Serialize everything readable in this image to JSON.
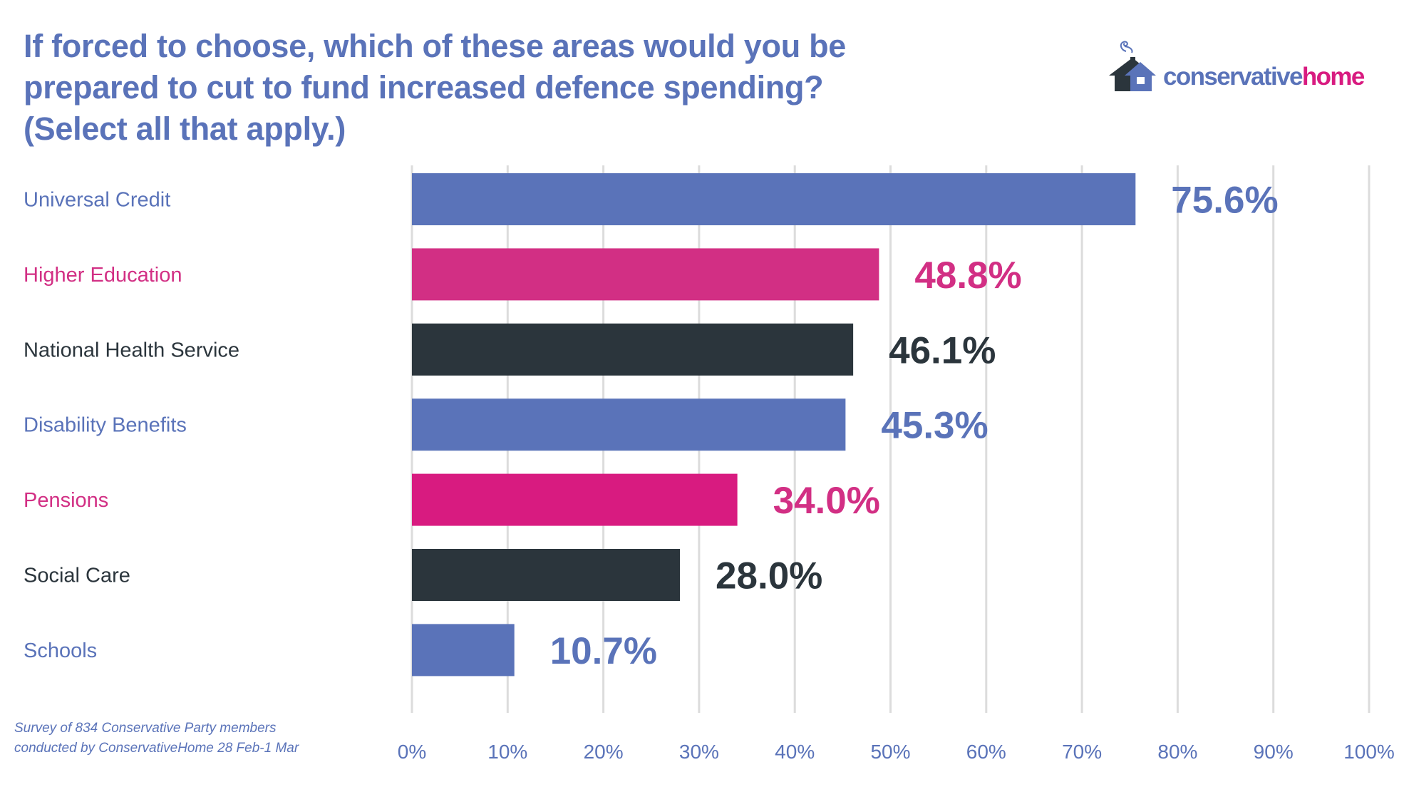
{
  "title_lines": [
    "If forced to choose, which of these areas would you be",
    "prepared to cut to fund increased defence spending?",
    "(Select all that apply.)"
  ],
  "logo": {
    "text_part1": "conservative",
    "text_part2": "home",
    "icon": "house-with-chimney-smoke-icon"
  },
  "footnote_lines": [
    "Survey of 834 Conservative Party members",
    "conducted by ConservativeHome 28 Feb-1 Mar"
  ],
  "colors": {
    "blue": "#5A73B9",
    "pink": "#D22F84",
    "magenta": "#D81B80",
    "dark": "#2B353C",
    "grid": "#DCDCDC"
  },
  "chart_data": {
    "type": "bar",
    "orientation": "horizontal",
    "title": "If forced to choose, which of these areas would you be prepared to cut to fund increased defence spending? (Select all that apply.)",
    "xlabel": "",
    "ylabel": "",
    "xlim": [
      0,
      100
    ],
    "grid": true,
    "categories": [
      "Universal Credit",
      "Higher Education",
      "National Health Service",
      "Disability Benefits",
      "Pensions",
      "Social Care",
      "Schools"
    ],
    "values": [
      75.6,
      48.8,
      46.1,
      45.3,
      34.0,
      28.0,
      10.7
    ],
    "value_labels": [
      "75.6%",
      "48.8%",
      "46.1%",
      "45.3%",
      "34.0%",
      "28.0%",
      "10.7%"
    ],
    "bar_colors": [
      "#5A73B9",
      "#D22F84",
      "#2B353C",
      "#5A73B9",
      "#D81B80",
      "#2B353C",
      "#5A73B9"
    ],
    "label_colors": [
      "#5A73B9",
      "#D22F84",
      "#2B353C",
      "#5A73B9",
      "#D22F84",
      "#2B353C",
      "#5A73B9"
    ],
    "ticks": [
      0,
      10,
      20,
      30,
      40,
      50,
      60,
      70,
      80,
      90,
      100
    ],
    "tick_labels": [
      "0%",
      "10%",
      "20%",
      "30%",
      "40%",
      "50%",
      "60%",
      "70%",
      "80%",
      "90%",
      "100%"
    ]
  }
}
